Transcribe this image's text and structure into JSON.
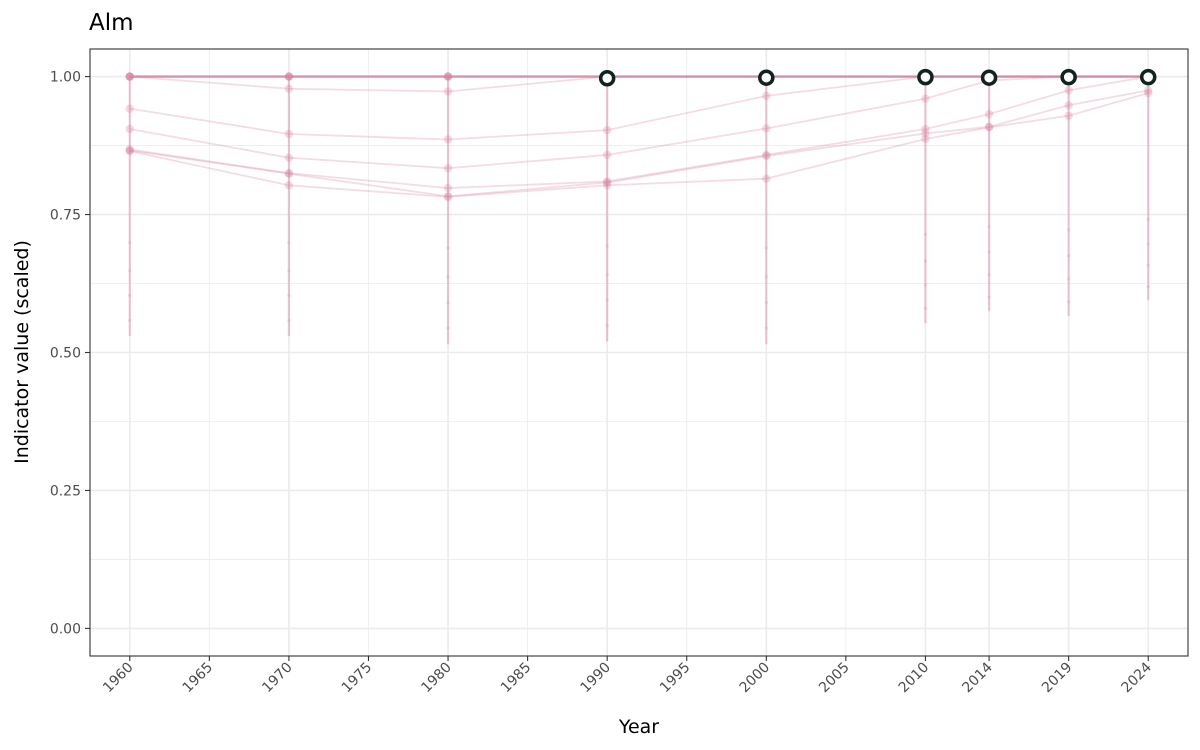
{
  "chart_data": {
    "type": "line",
    "title": "Alm",
    "xlabel": "Year",
    "ylabel": "Indicator value (scaled)",
    "xlim": [
      1957.5,
      2026.5
    ],
    "ylim": [
      -0.05,
      1.05
    ],
    "x_major_ticks": [
      1960,
      1970,
      1980,
      1990,
      2000,
      2010,
      2014,
      2019,
      2024
    ],
    "x_minor_ticks": [
      1965,
      1975,
      1985,
      1995,
      2005
    ],
    "x_tick_labels": [
      "1960",
      "1965",
      "1970",
      "1975",
      "1980",
      "1985",
      "1990",
      "1995",
      "2000",
      "2005",
      "2010",
      "2014",
      "2019",
      "2024"
    ],
    "x_tick_values": [
      1960,
      1965,
      1970,
      1975,
      1980,
      1985,
      1990,
      1995,
      2000,
      2005,
      2010,
      2014,
      2019,
      2024
    ],
    "y_ticks": [
      0.0,
      0.25,
      0.5,
      0.75,
      1.0
    ],
    "y_tick_labels": [
      "0.00",
      "0.25",
      "0.50",
      "0.75",
      "1.00"
    ],
    "grid": true,
    "legend": "none",
    "x": [
      1960,
      1970,
      1980,
      1990,
      2000,
      2010,
      2014,
      2019,
      2024
    ],
    "series": [
      {
        "values": [
          1.0,
          1.0,
          1.0,
          1.0,
          1.0,
          1.0,
          1.0,
          1.0,
          1.0
        ]
      },
      {
        "values": [
          1.0,
          0.978,
          0.973,
          1.0,
          1.0,
          1.0,
          1.0,
          1.0,
          1.0
        ]
      },
      {
        "values": [
          0.942,
          0.896,
          0.886,
          0.903,
          0.965,
          1.0,
          1.0,
          1.0,
          1.0
        ]
      },
      {
        "values": [
          0.905,
          0.853,
          0.834,
          0.858,
          0.906,
          0.96,
          0.993,
          1.0,
          1.0
        ]
      },
      {
        "values": [
          0.868,
          0.825,
          0.798,
          0.81,
          0.858,
          0.905,
          0.932,
          0.975,
          1.0
        ]
      },
      {
        "values": [
          0.866,
          0.824,
          0.783,
          0.808,
          0.856,
          0.897,
          0.909,
          0.948,
          0.975
        ]
      },
      {
        "values": [
          0.865,
          0.803,
          0.782,
          0.803,
          0.815,
          0.887,
          0.908,
          0.929,
          0.97
        ]
      }
    ],
    "error_bars": {
      "x": [
        1960,
        1970,
        1980,
        1990,
        2000,
        2010,
        2014,
        2019,
        2024
      ],
      "lower": [
        0.53,
        0.53,
        0.515,
        0.52,
        0.515,
        0.553,
        0.575,
        0.566,
        0.595
      ],
      "upper": [
        1.0,
        1.0,
        1.0,
        1.0,
        1.0,
        1.0,
        1.0,
        1.0,
        1.0
      ]
    },
    "reference_points": {
      "x": [
        1990,
        2000,
        2010,
        2014,
        2019,
        2024
      ],
      "values": [
        0.997,
        0.998,
        0.999,
        0.998,
        0.999,
        0.999
      ]
    },
    "colors": {
      "series_line": "#d6809f",
      "error_bar": "#e29ab4",
      "reference_fill": "#ffffff",
      "reference_stroke": "#0f2320"
    }
  }
}
